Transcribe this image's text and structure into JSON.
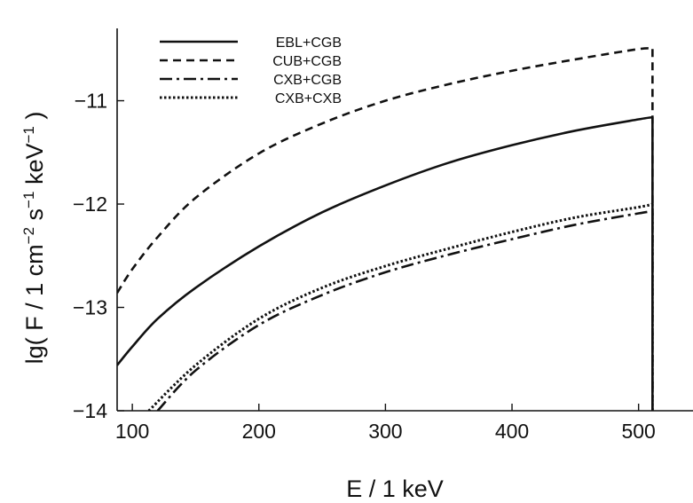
{
  "chart_data": {
    "type": "line",
    "xlabel": "E / 1 keV",
    "ylabel_parts": {
      "prefix": "lg( F / 1 cm",
      "exp1": "−2",
      "mid": " s",
      "exp2": "−1",
      "mid2": " keV",
      "exp3": "−1",
      "suffix": " )"
    },
    "xlim": [
      88,
      543
    ],
    "ylim": [
      -14,
      -10.3
    ],
    "xticks": [
      100,
      200,
      300,
      400,
      500
    ],
    "yticks": [
      -14,
      -13,
      -12,
      -11
    ],
    "xtick_labels": [
      "100",
      "200",
      "300",
      "400",
      "500"
    ],
    "ytick_labels": [
      "−14",
      "−13",
      "−12",
      "−11"
    ],
    "cutoff_x": 511,
    "grid": false,
    "legend_position": "top-left",
    "series": [
      {
        "name": "EBL+CGB",
        "style": "solid",
        "x": [
          88,
          100,
          120,
          150,
          200,
          250,
          300,
          350,
          400,
          450,
          500,
          511
        ],
        "y": [
          -13.56,
          -13.38,
          -13.11,
          -12.81,
          -12.41,
          -12.08,
          -11.82,
          -11.6,
          -11.43,
          -11.29,
          -11.18,
          -11.16
        ]
      },
      {
        "name": "CUB+CGB",
        "style": "dashed",
        "x": [
          88,
          100,
          120,
          150,
          200,
          250,
          300,
          350,
          400,
          450,
          500,
          511
        ],
        "y": [
          -12.86,
          -12.63,
          -12.32,
          -11.94,
          -11.51,
          -11.22,
          -11.0,
          -10.84,
          -10.71,
          -10.6,
          -10.5,
          -10.5
        ]
      },
      {
        "name": "CXB+CGB",
        "style": "dashdot",
        "x": [
          120,
          150,
          200,
          250,
          300,
          350,
          400,
          450,
          500,
          511
        ],
        "y": [
          -14.0,
          -13.61,
          -13.17,
          -12.88,
          -12.66,
          -12.49,
          -12.34,
          -12.2,
          -12.09,
          -12.07
        ]
      },
      {
        "name": "CXB+CXB",
        "style": "dotted",
        "x": [
          113,
          150,
          200,
          250,
          300,
          350,
          400,
          450,
          500,
          511
        ],
        "y": [
          -14.0,
          -13.56,
          -13.11,
          -12.81,
          -12.6,
          -12.43,
          -12.27,
          -12.13,
          -12.03,
          -12.0
        ]
      }
    ]
  }
}
